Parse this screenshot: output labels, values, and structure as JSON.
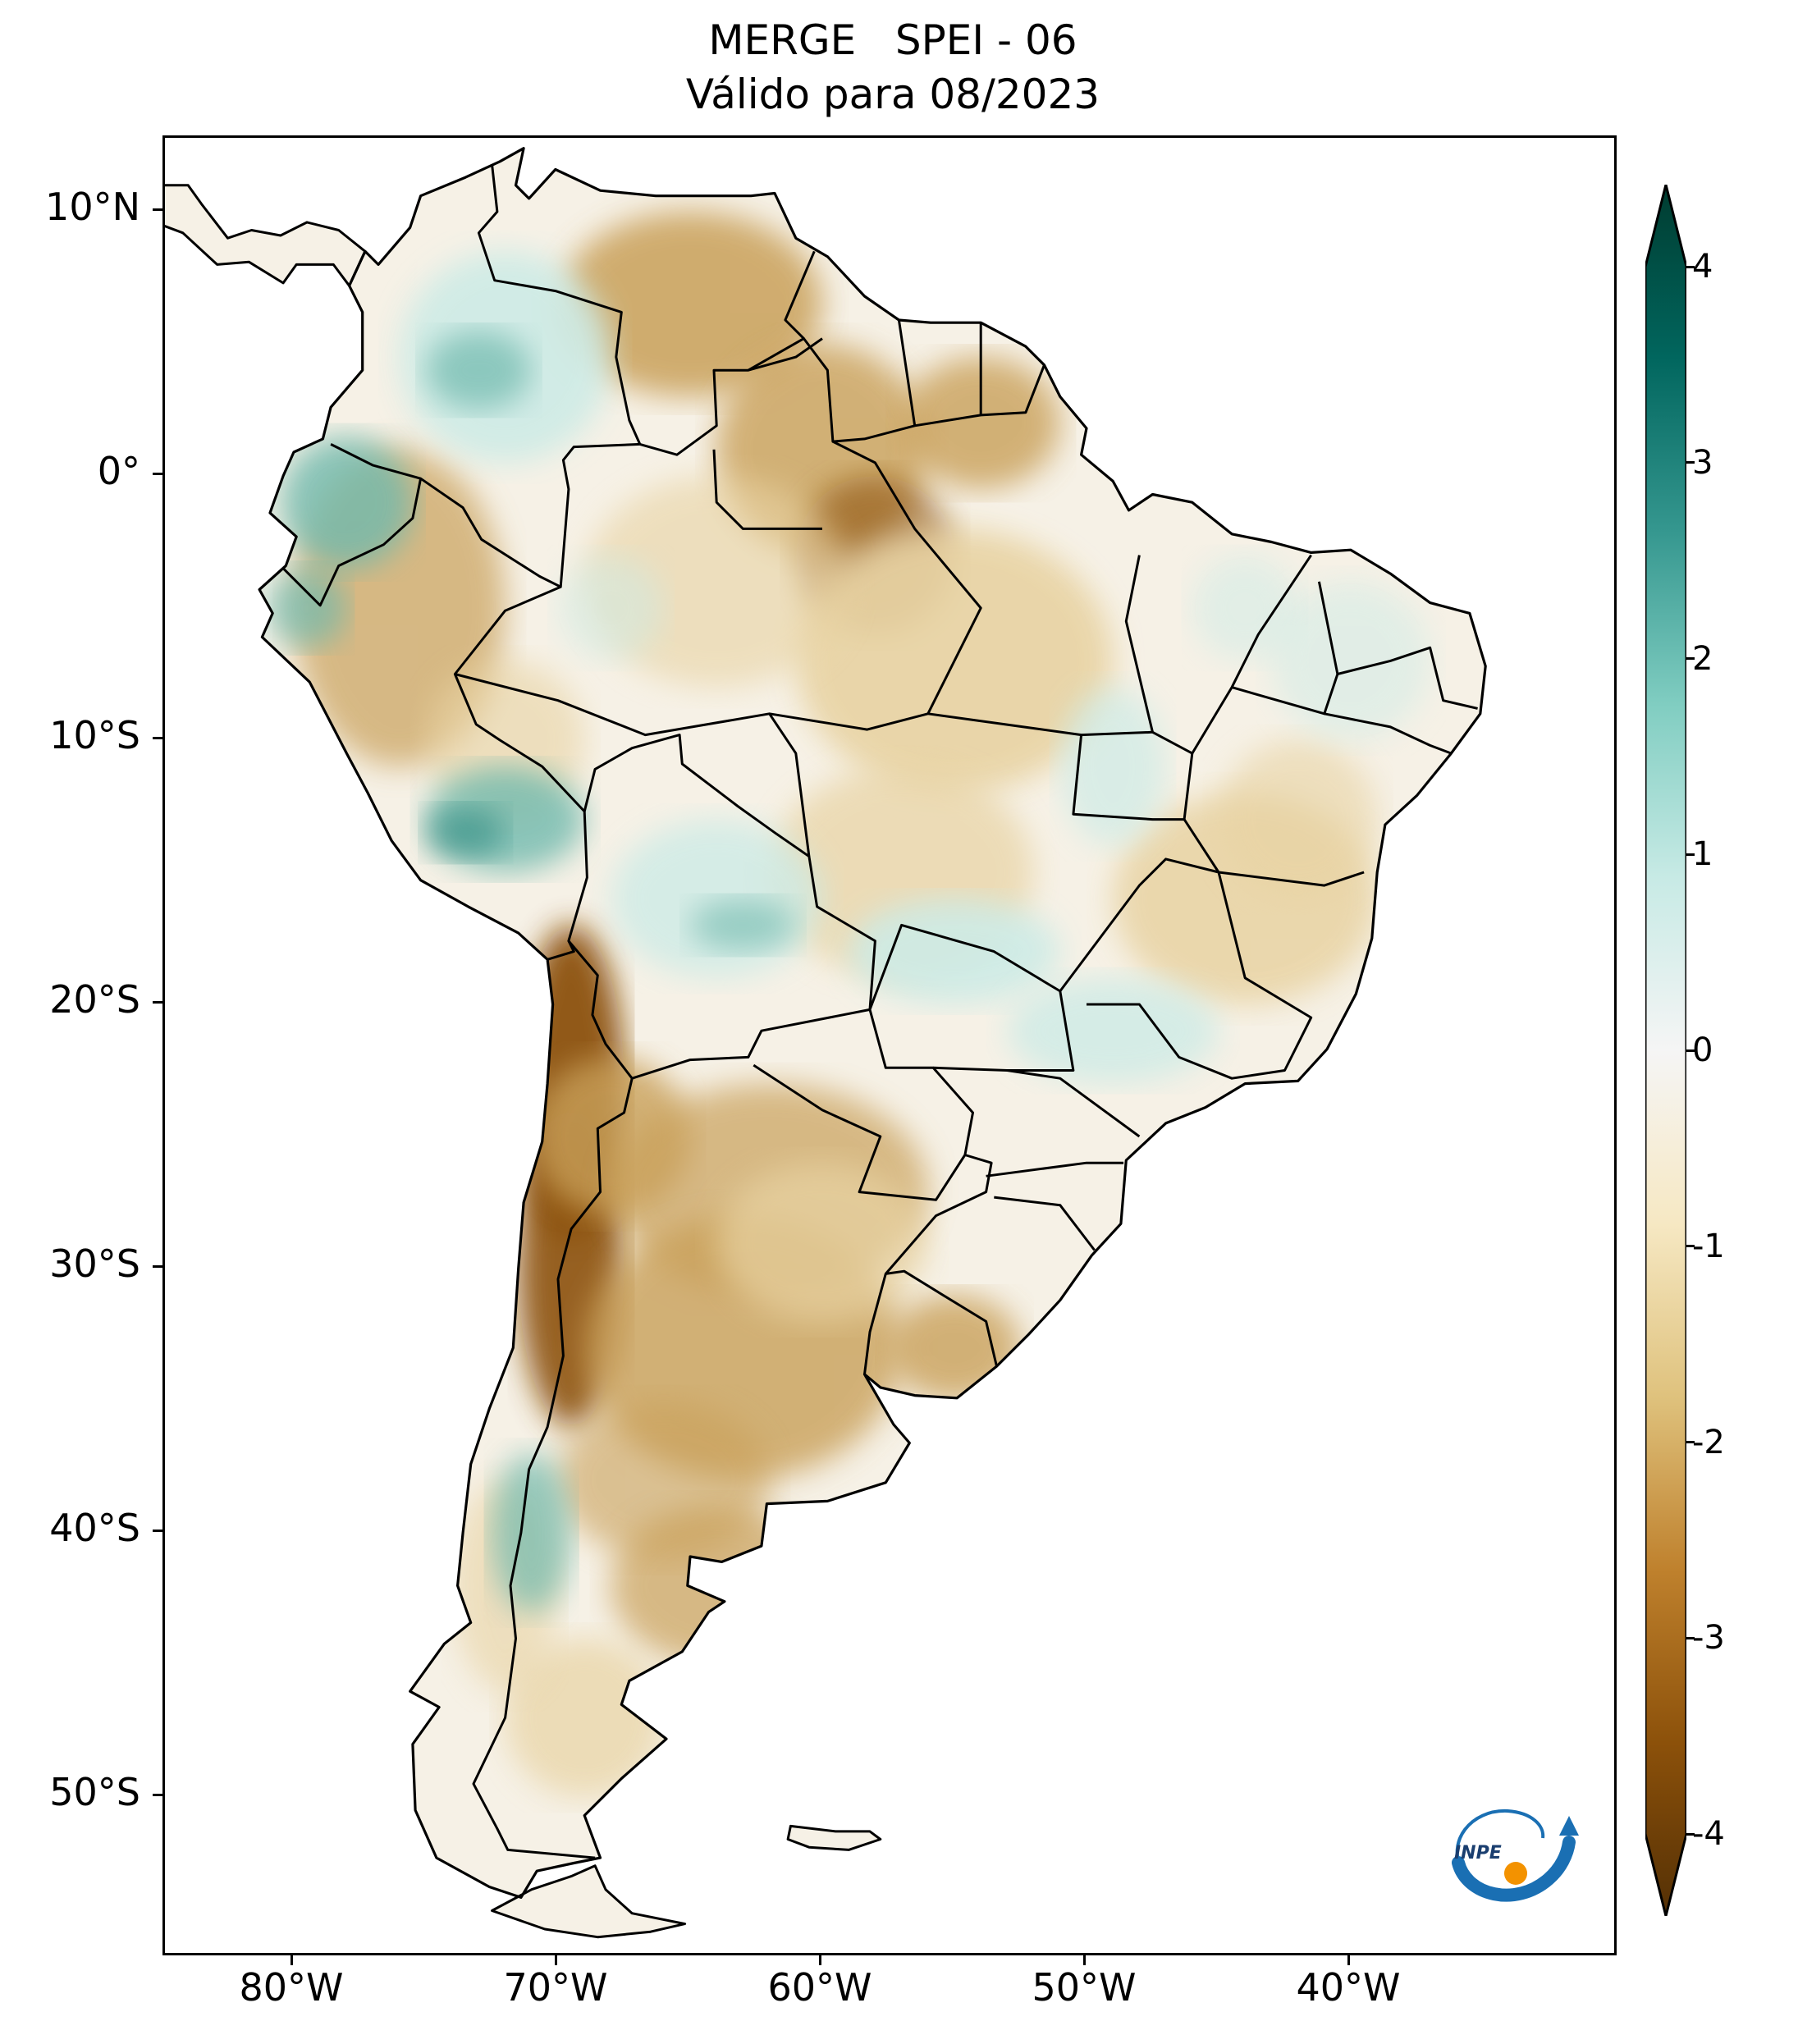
{
  "title": {
    "line1": "MERGE   SPEI - 06",
    "line2": "Válido para 08/2023"
  },
  "axes": {
    "lat_labels": [
      "10°N",
      "0°",
      "10°S",
      "20°S",
      "30°S",
      "40°S",
      "50°S"
    ],
    "lat_values": [
      10,
      0,
      -10,
      -20,
      -30,
      -40,
      -50
    ],
    "lon_labels": [
      "80°W",
      "70°W",
      "60°W",
      "50°W",
      "40°W"
    ],
    "lon_values": [
      -80,
      -70,
      -60,
      -50,
      -40
    ],
    "lon_range": [
      -85,
      -30
    ],
    "lat_range": [
      -56,
      13
    ]
  },
  "colorbar": {
    "labels": [
      "4",
      "3",
      "2",
      "1",
      "0",
      "-1",
      "-2",
      "-3",
      "-4"
    ],
    "values": [
      4,
      3,
      2,
      1,
      0,
      -1,
      -2,
      -3,
      -4
    ],
    "extend": "both",
    "colors": [
      "#003c30",
      "#01665e",
      "#35978f",
      "#80cdc1",
      "#c7eae5",
      "#f5f5f5",
      "#f6e8c3",
      "#dfc27d",
      "#bf812d",
      "#8c510a",
      "#543005"
    ]
  },
  "logo": {
    "text": "INPE",
    "colors": [
      "#1a6fb3",
      "#f39200"
    ]
  },
  "map": {
    "variable": "SPEI",
    "theme": {
      "dry_strong": "#8c510a",
      "dry": "#c9a05a",
      "dry_light": "#e8d3a3",
      "neutral": "#f6f1e6",
      "wet_light": "#cdebe6",
      "wet": "#6fb9ad",
      "wet_strong": "#2e8a80"
    }
  }
}
